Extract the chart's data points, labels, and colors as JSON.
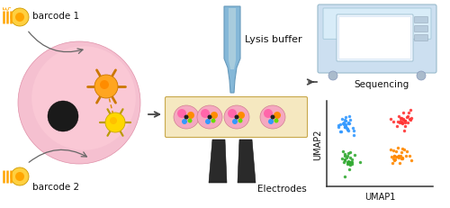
{
  "bg_color": "#ffffff",
  "barcode1_text": "barcode 1",
  "barcode2_text": "barcode 2",
  "lysis_text": "Lysis buffer",
  "sequencing_text": "Sequencing",
  "electrodes_text": "Electrodes",
  "umap1_text": "UMAP1",
  "umap2_text": "UMAP2",
  "cell_pink": "#f9b8c8",
  "cell_pink2": "#f7a0b8",
  "nucleus_color": "#1a1a1a",
  "bead_orange": "#FFA500",
  "bead_orange_inner": "#cc7700",
  "bead_yellow": "#FFD700",
  "bead_yellow_inner": "#E6B800",
  "barcode_line_color": "#FFA500",
  "channel_fill": "#F5E8C0",
  "channel_border": "#C8A84B",
  "pipette_body": "#85b8d8",
  "pipette_dark": "#6699bb",
  "electrode_color": "#2a2a2a",
  "sequencer_body": "#c8ddf0",
  "sequencer_top": "#d8e8f4",
  "umap_blue": "#3399FF",
  "umap_red": "#FF3333",
  "umap_orange": "#FF8800",
  "umap_green": "#33AA33",
  "arrow_color": "#444444",
  "text_color": "#111111"
}
